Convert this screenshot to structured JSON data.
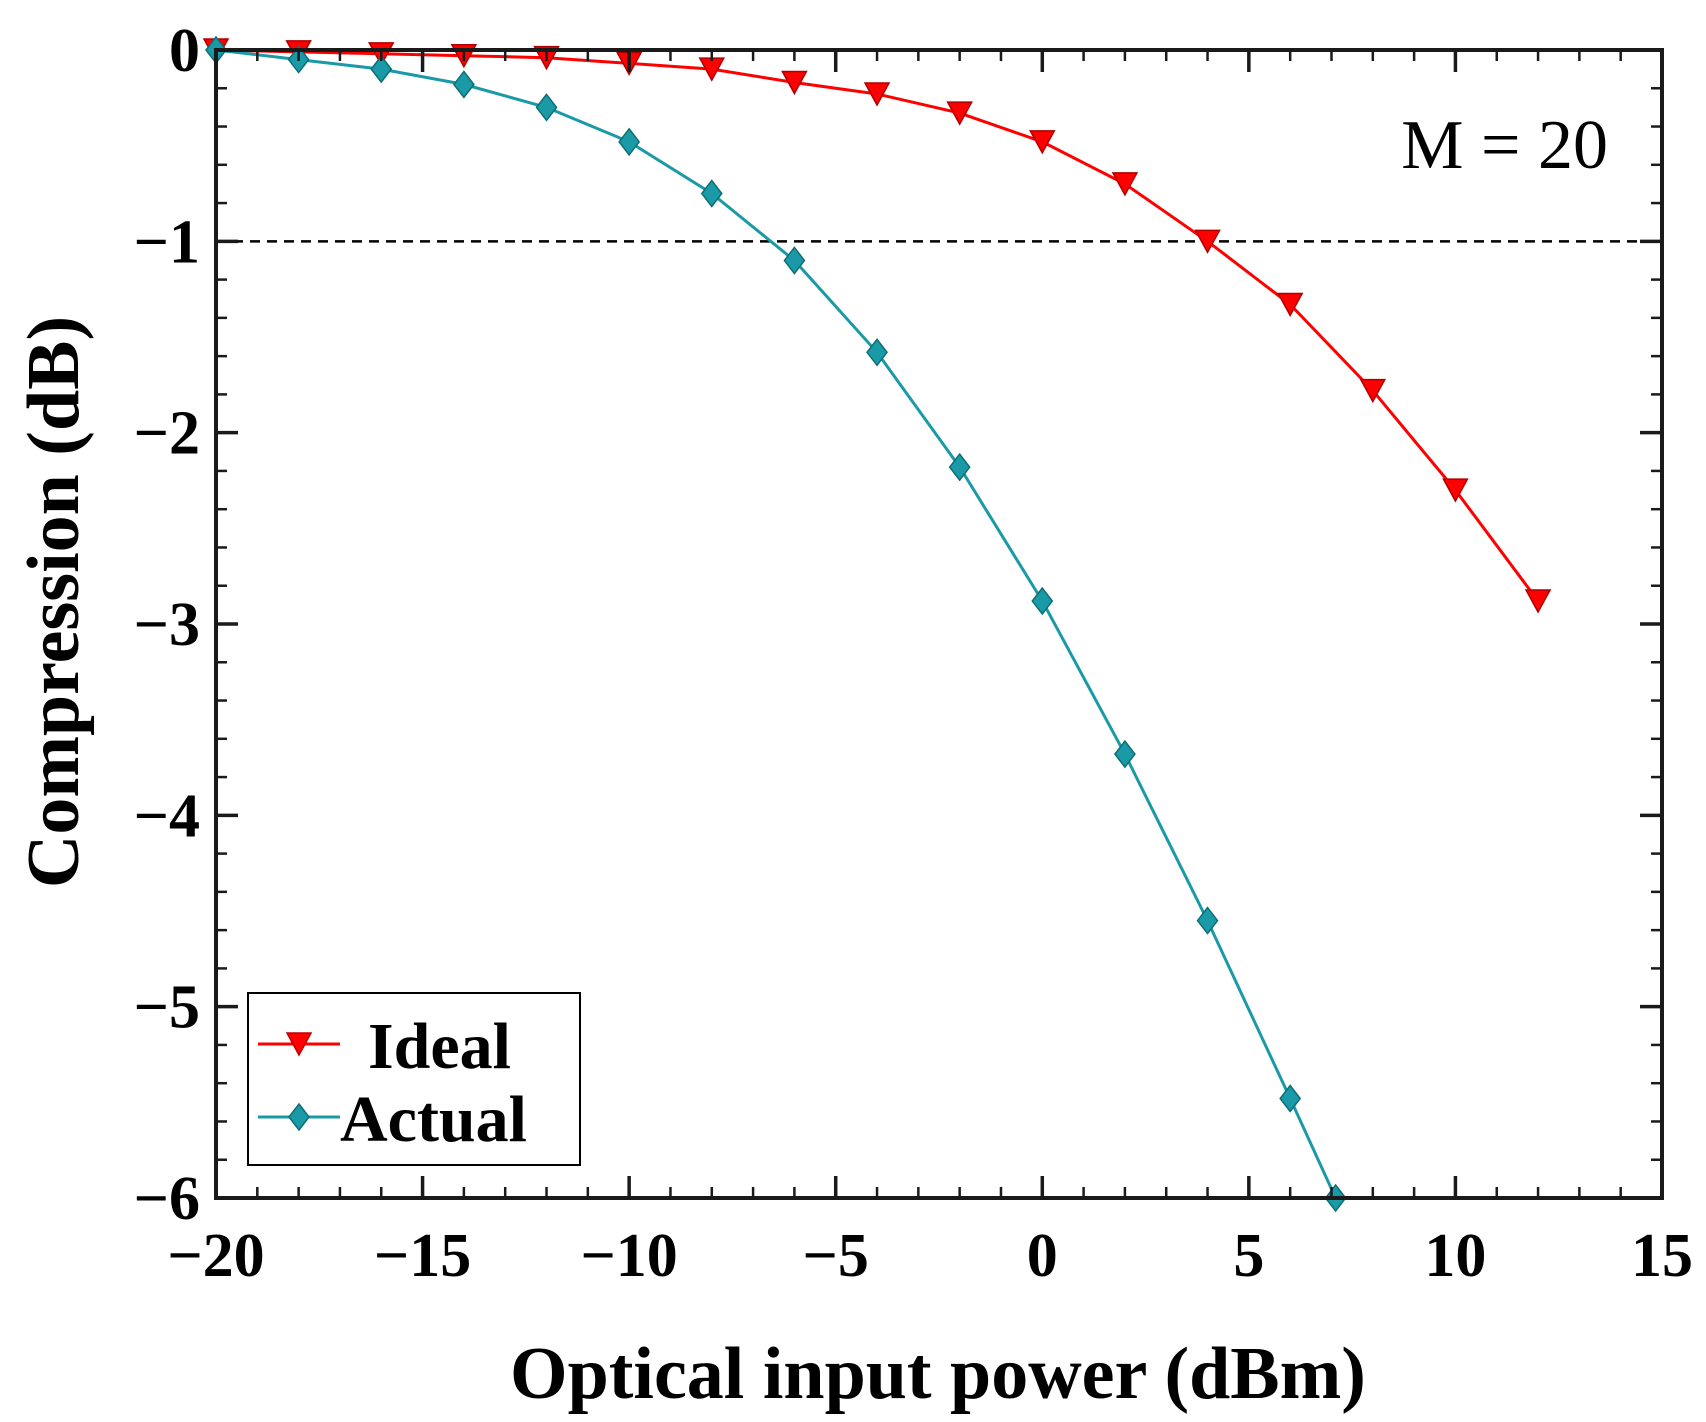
{
  "chart_data": {
    "type": "line",
    "title": "",
    "xlabel": "Optical input power (dBm)",
    "ylabel": "Compression (dB)",
    "xlim": [
      -20,
      15
    ],
    "ylim": [
      -6,
      0
    ],
    "xticks": [
      -20,
      -15,
      -10,
      -5,
      0,
      5,
      10,
      15
    ],
    "yticks": [
      0,
      -1,
      -2,
      -3,
      -4,
      -5,
      -6
    ],
    "xtick_labels": [
      "−20",
      "−15",
      "−10",
      "−5",
      "0",
      "5",
      "10",
      "15"
    ],
    "ytick_labels": [
      "0",
      "−1",
      "−2",
      "−3",
      "−4",
      "−5",
      "−6"
    ],
    "reference_line": {
      "y": -1,
      "style": "dashed",
      "color": "#000000"
    },
    "annotation": "M = 20",
    "legend_position": "bottom-left",
    "series": [
      {
        "name": "Ideal",
        "color": "#ff0000",
        "marker": "triangle-down",
        "x": [
          -20,
          -18,
          -16,
          -14,
          -12,
          -10,
          -8,
          -6,
          -4,
          -2,
          0,
          2,
          4,
          6,
          8,
          10,
          12
        ],
        "y": [
          0.0,
          -0.01,
          -0.02,
          -0.03,
          -0.04,
          -0.07,
          -0.1,
          -0.17,
          -0.23,
          -0.33,
          -0.48,
          -0.7,
          -1.0,
          -1.33,
          -1.78,
          -2.3,
          -2.88
        ]
      },
      {
        "name": "Actual",
        "color": "#1a9aa6",
        "marker": "diamond",
        "x": [
          -20,
          -18,
          -16,
          -14,
          -12,
          -10,
          -8,
          -6,
          -4,
          -2,
          0,
          2,
          4,
          6,
          7.1
        ],
        "y": [
          0.0,
          -0.05,
          -0.1,
          -0.18,
          -0.3,
          -0.48,
          -0.75,
          -1.1,
          -1.58,
          -2.18,
          -2.88,
          -3.68,
          -4.55,
          -5.48,
          -6.0
        ]
      }
    ]
  }
}
